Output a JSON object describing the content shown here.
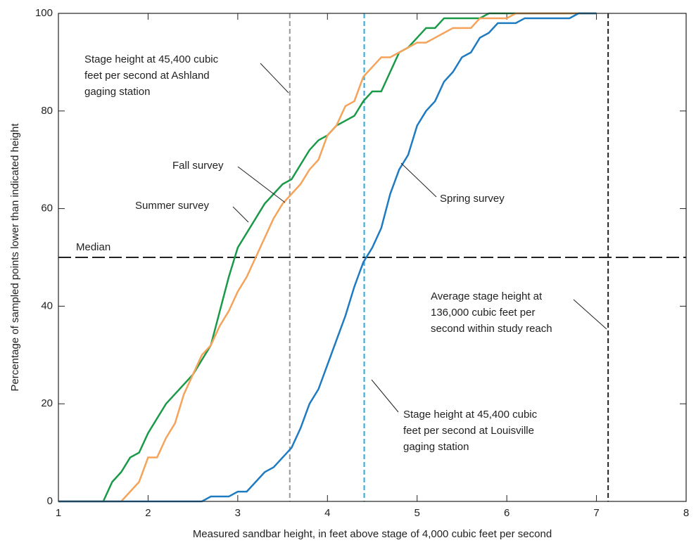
{
  "chart_data": {
    "type": "line",
    "xlabel": "Measured sandbar height, in feet above stage of 4,000 cubic feet per second",
    "ylabel": "Percentage of sampled points lower than indicated height",
    "x": [
      1.0,
      1.1,
      1.2,
      1.3,
      1.4,
      1.5,
      1.6,
      1.7,
      1.8,
      1.9,
      2.0,
      2.1,
      2.2,
      2.3,
      2.4,
      2.5,
      2.6,
      2.7,
      2.8,
      2.9,
      3.0,
      3.1,
      3.2,
      3.3,
      3.4,
      3.5,
      3.6,
      3.7,
      3.8,
      3.9,
      4.0,
      4.1,
      4.2,
      4.3,
      4.4,
      4.5,
      4.6,
      4.7,
      4.8,
      4.9,
      5.0,
      5.1,
      5.2,
      5.3,
      5.4,
      5.5,
      5.6,
      5.7,
      5.8,
      5.9,
      6.0,
      6.1,
      6.2,
      6.3,
      6.4,
      6.5,
      6.6,
      6.7,
      6.8,
      6.9,
      7.0
    ],
    "series": [
      {
        "name": "Summer survey",
        "color": "#1a9a48",
        "values": [
          0,
          0,
          0,
          0,
          0,
          0,
          4,
          6,
          9,
          10,
          14,
          17,
          20,
          22,
          24,
          26,
          29,
          32,
          39,
          46,
          52,
          55,
          58,
          61,
          63,
          65,
          66,
          69,
          72,
          74,
          75,
          77,
          78,
          79,
          82,
          84,
          84,
          88,
          92,
          93,
          95,
          97,
          97,
          99,
          99,
          99,
          99,
          99,
          100,
          100,
          100,
          100,
          100,
          100,
          100,
          100,
          100,
          100,
          100,
          100,
          100
        ]
      },
      {
        "name": "Fall survey",
        "color": "#f5a35a",
        "values": [
          0,
          0,
          0,
          0,
          0,
          0,
          0,
          0,
          2,
          4,
          9,
          9,
          13,
          16,
          22,
          26,
          30,
          32,
          36,
          39,
          43,
          46,
          50,
          54,
          58,
          61,
          63,
          65,
          68,
          70,
          75,
          77,
          81,
          82,
          87,
          89,
          91,
          91,
          92,
          93,
          94,
          94,
          95,
          96,
          97,
          97,
          97,
          99,
          99,
          99,
          99,
          100,
          100,
          100,
          100,
          100,
          100,
          100,
          100,
          100,
          100
        ]
      },
      {
        "name": "Spring survey",
        "color": "#1f7bc1",
        "values": [
          0,
          0,
          0,
          0,
          0,
          0,
          0,
          0,
          0,
          0,
          0,
          0,
          0,
          0,
          0,
          0,
          0,
          1,
          1,
          1,
          2,
          2,
          4,
          6,
          7,
          9,
          11,
          15,
          20,
          23,
          28,
          33,
          38,
          44,
          49,
          52,
          56,
          63,
          68,
          71,
          77,
          80,
          82,
          86,
          88,
          91,
          92,
          95,
          96,
          98,
          98,
          98,
          99,
          99,
          99,
          99,
          99,
          99,
          100,
          100,
          100
        ]
      }
    ],
    "reference_lines": [
      {
        "axis": "x",
        "value": 3.58,
        "color": "#999999",
        "label": [
          "Stage height at 45,400 cubic",
          "feet per second at Ashland",
          "gaging station"
        ]
      },
      {
        "axis": "x",
        "value": 4.41,
        "color": "#29abe2",
        "label": [
          "Stage height at 45,400 cubic",
          "feet per second at Louisville",
          "gaging station"
        ]
      },
      {
        "axis": "x",
        "value": 7.13,
        "color": "#222222",
        "label": [
          "Average stage height at",
          "136,000 cubic feet per",
          "second within study reach"
        ]
      },
      {
        "axis": "y",
        "value": 50,
        "color": "#222222",
        "label": [
          "Median"
        ]
      }
    ],
    "xlim": [
      1,
      8
    ],
    "xticks": [
      1,
      2,
      3,
      4,
      5,
      6,
      7,
      8
    ],
    "ylim": [
      0,
      100
    ],
    "yticks": [
      0,
      20,
      40,
      60,
      80,
      100
    ],
    "grid": false
  }
}
